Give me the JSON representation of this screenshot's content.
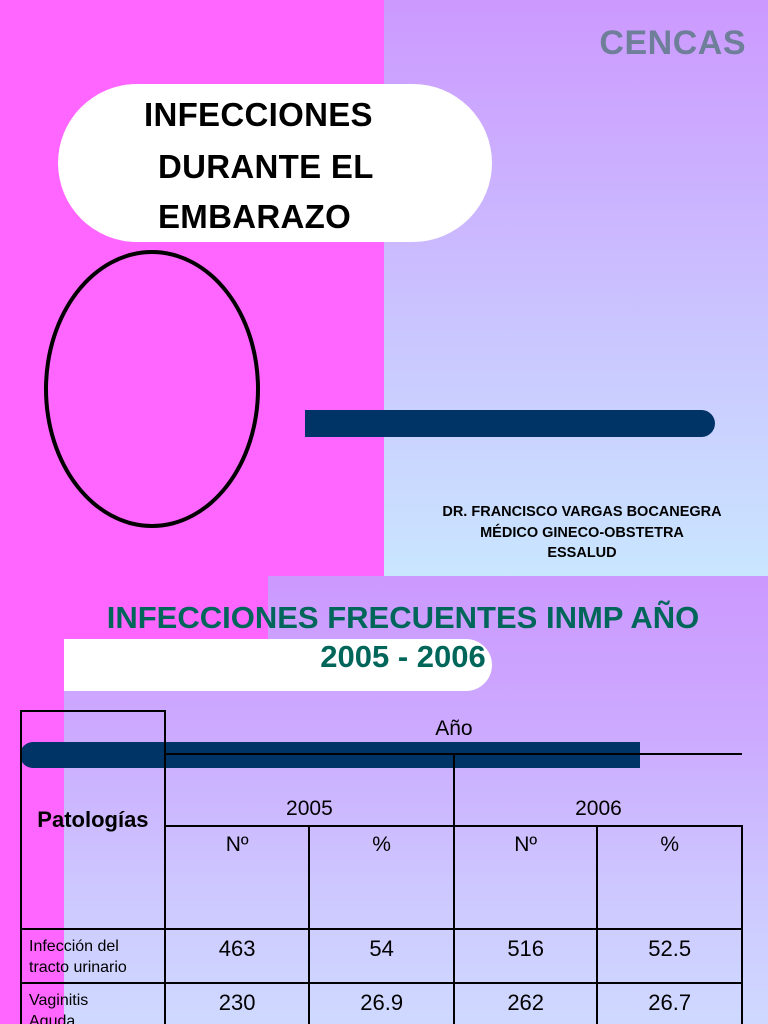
{
  "slide1": {
    "brand": "CENCAS",
    "title_lines": [
      "INFECCIONES",
      "DURANTE EL",
      "EMBARAZO"
    ],
    "author_lines": [
      "DR. FRANCISCO VARGAS BOCANEGRA",
      "MÉDICO GINECO-OBSTETRA",
      "ESSALUD"
    ]
  },
  "slide2": {
    "title_lines": [
      "INFECCIONES FRECUENTES INMP AÑO",
      "2005 - 2006"
    ],
    "table": {
      "col_group_label": "Año",
      "row_header_label": "Patologías",
      "years": [
        "2005",
        "2006"
      ],
      "subheaders": [
        "Nº",
        "%",
        "Nº",
        "%"
      ],
      "rows": [
        {
          "label": "Infección del tracto urinario",
          "label_lines": [
            "Infección del",
            "tracto urinario"
          ],
          "values": [
            "463",
            "54",
            "516",
            "52.5"
          ]
        },
        {
          "label": "Vaginitis Aguda",
          "label_lines": [
            "Vaginitis",
            "Aguda"
          ],
          "values": [
            "230",
            "26.9",
            "262",
            "26.7"
          ]
        }
      ]
    }
  },
  "colors": {
    "pink_background": "#ff66ff",
    "lavender_panel": "#cc99ff",
    "navy_bar": "#003366",
    "title_teal": "#00665a",
    "brand_gray": "#6f7f9a"
  }
}
